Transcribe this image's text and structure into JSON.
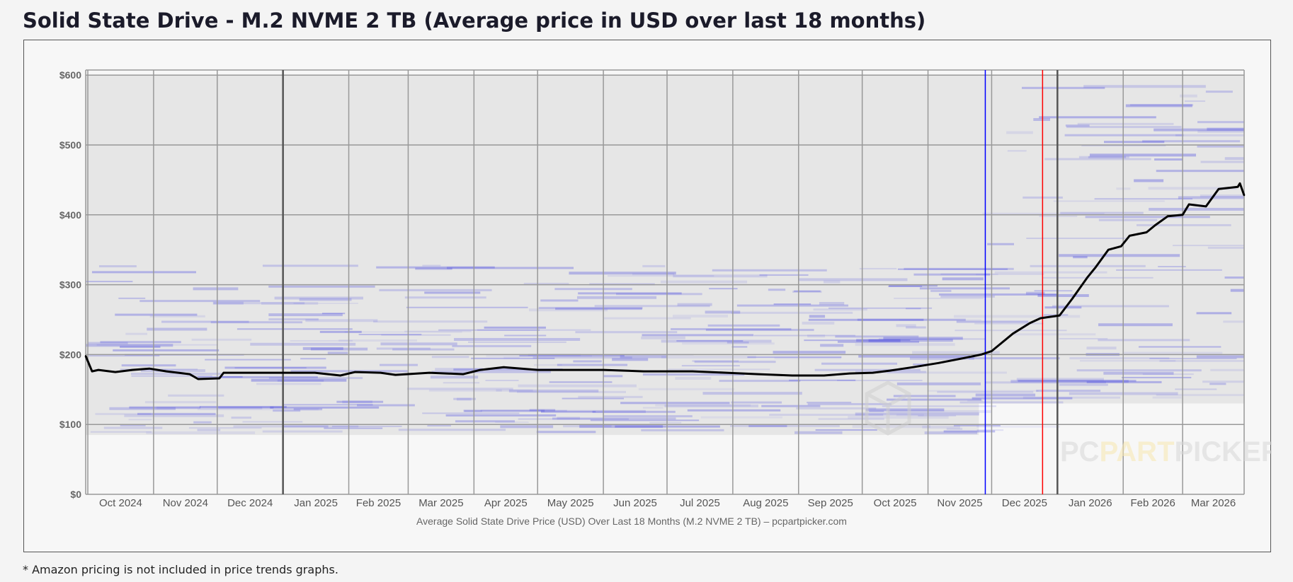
{
  "page": {
    "title": "Solid State Drive - M.2 NVME 2 TB (Average price in USD over last 18 months)",
    "footnote": "* Amazon pricing is not included in price trends graphs."
  },
  "chart_data": {
    "type": "line",
    "title": "",
    "caption": "Average Solid State Drive Price (USD) Over Last 18 Months (M.2 NVME 2 TB) – pcpartpicker.com",
    "xlabel": "",
    "ylabel": "",
    "xlim": [
      "2024-09-30",
      "2026-03-30"
    ],
    "ylim": [
      0,
      607
    ],
    "grid": true,
    "y_ticks": [
      "$0",
      "$100",
      "$200",
      "$300",
      "$400",
      "$500",
      "$600"
    ],
    "y_tick_values": [
      0,
      100,
      200,
      300,
      400,
      500,
      600
    ],
    "x_ticks": [
      "Oct 2024",
      "Nov 2024",
      "Dec 2024",
      "Jan 2025",
      "Feb 2025",
      "Mar 2025",
      "Apr 2025",
      "May 2025",
      "Jun 2025",
      "Jul 2025",
      "Aug 2025",
      "Sep 2025",
      "Oct 2025",
      "Nov 2025",
      "Dec 2025",
      "Jan 2026",
      "Feb 2026",
      "Mar 2026"
    ],
    "x_tick_months": [
      "2024-10",
      "2024-11",
      "2024-12",
      "2025-01",
      "2025-02",
      "2025-03",
      "2025-04",
      "2025-05",
      "2025-06",
      "2025-07",
      "2025-08",
      "2025-09",
      "2025-10",
      "2025-11",
      "2025-12",
      "2026-01",
      "2026-02",
      "2026-03"
    ],
    "series": [
      {
        "color": "#000000",
        "points": [
          [
            "2024-09-30",
            198
          ],
          [
            "2024-10-03",
            176
          ],
          [
            "2024-10-06",
            178
          ],
          [
            "2024-10-14",
            175
          ],
          [
            "2024-10-22",
            178
          ],
          [
            "2024-10-30",
            180
          ],
          [
            "2024-11-07",
            176
          ],
          [
            "2024-11-18",
            172
          ],
          [
            "2024-11-22",
            165
          ],
          [
            "2024-12-02",
            166
          ],
          [
            "2024-12-04",
            174
          ],
          [
            "2024-12-16",
            174
          ],
          [
            "2025-01-01",
            174
          ],
          [
            "2025-01-16",
            174
          ],
          [
            "2025-01-28",
            170
          ],
          [
            "2025-02-04",
            175
          ],
          [
            "2025-02-16",
            174
          ],
          [
            "2025-02-23",
            171
          ],
          [
            "2025-03-11",
            174
          ],
          [
            "2025-03-27",
            172
          ],
          [
            "2025-04-04",
            178
          ],
          [
            "2025-04-15",
            182
          ],
          [
            "2025-05-01",
            178
          ],
          [
            "2025-05-20",
            178
          ],
          [
            "2025-06-01",
            178
          ],
          [
            "2025-06-20",
            176
          ],
          [
            "2025-06-28",
            176
          ],
          [
            "2025-07-13",
            176
          ],
          [
            "2025-07-29",
            174
          ],
          [
            "2025-08-13",
            172
          ],
          [
            "2025-08-29",
            170
          ],
          [
            "2025-09-13",
            170
          ],
          [
            "2025-09-25",
            173
          ],
          [
            "2025-10-06",
            174
          ],
          [
            "2025-10-14",
            177
          ],
          [
            "2025-10-25",
            182
          ],
          [
            "2025-11-06",
            188
          ],
          [
            "2025-11-18",
            195
          ],
          [
            "2025-11-26",
            200
          ],
          [
            "2025-12-01",
            205
          ],
          [
            "2025-12-05",
            215
          ],
          [
            "2025-12-11",
            230
          ],
          [
            "2025-12-19",
            245
          ],
          [
            "2025-12-24",
            252
          ],
          [
            "2026-01-02",
            256
          ],
          [
            "2026-01-08",
            280
          ],
          [
            "2026-01-15",
            310
          ],
          [
            "2026-01-19",
            325
          ],
          [
            "2026-01-25",
            350
          ],
          [
            "2026-01-31",
            355
          ],
          [
            "2026-02-04",
            370
          ],
          [
            "2026-02-12",
            375
          ],
          [
            "2026-02-16",
            385
          ],
          [
            "2026-02-22",
            398
          ],
          [
            "2026-03-01",
            400
          ],
          [
            "2026-03-04",
            415
          ],
          [
            "2026-03-12",
            412
          ],
          [
            "2026-03-18",
            437
          ],
          [
            "2026-03-27",
            440
          ],
          [
            "2026-03-28",
            445
          ],
          [
            "2026-03-30",
            428
          ]
        ]
      }
    ],
    "markers": [
      {
        "date": "2025-11-28",
        "color": "#0000ff"
      },
      {
        "date": "2025-12-25",
        "color": "#ff0000"
      }
    ],
    "price_distribution": {
      "band_color": "#e6e6e6",
      "line_color": "#5050e0",
      "ranges": [
        {
          "from": "2024-09-30",
          "to": "2025-11-25",
          "low": 85,
          "high": 600
        },
        {
          "from": "2025-11-25",
          "to": "2026-03-30",
          "low": 130,
          "high": 600
        }
      ]
    },
    "watermark": {
      "text_a": "PC",
      "text_b": "PART",
      "text_c": "PICKER"
    }
  }
}
